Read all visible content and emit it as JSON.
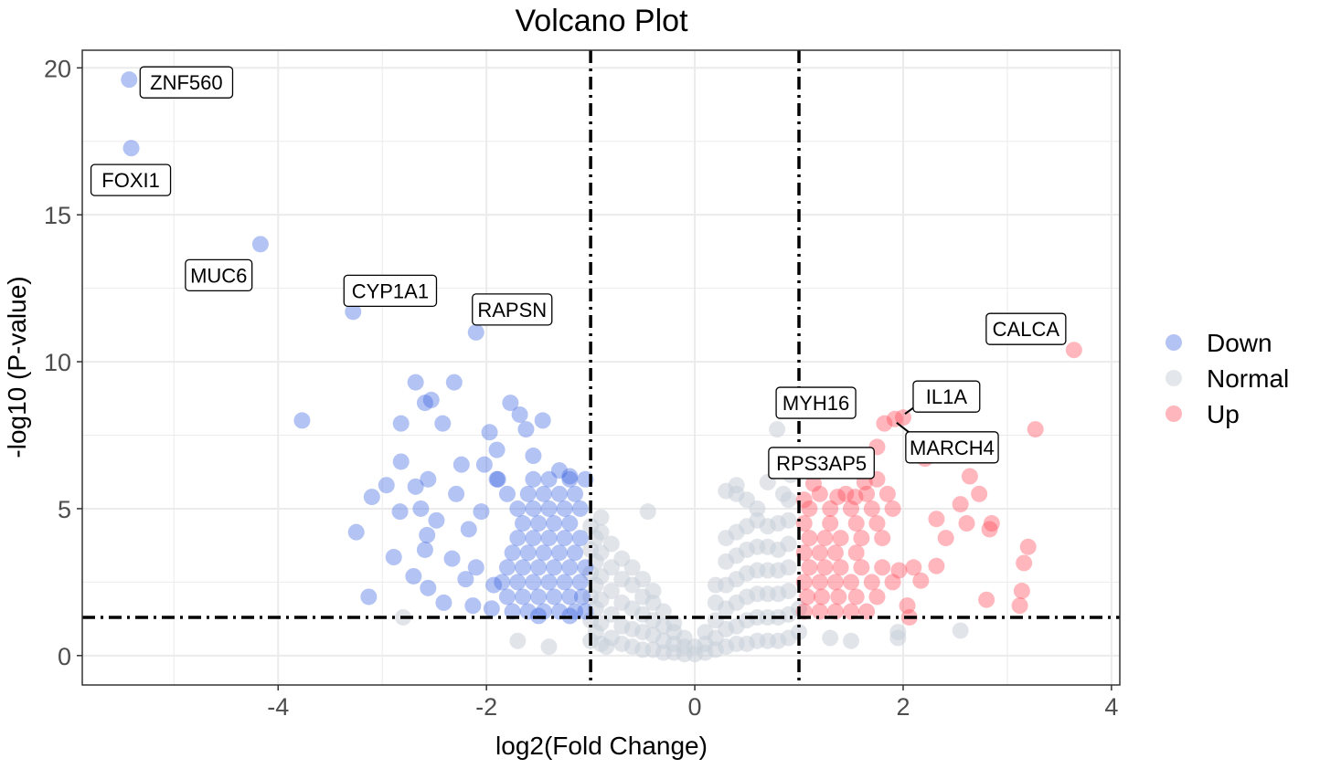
{
  "chart_data": {
    "type": "scatter",
    "title": "Volcano Plot",
    "xlabel": "log2(Fold Change)",
    "ylabel": "-log10 (P-value)",
    "xlim": [
      -5.88,
      4.08
    ],
    "ylim": [
      -1.0,
      20.6
    ],
    "xticks": [
      -4,
      -2,
      0,
      2,
      4
    ],
    "yticks": [
      0,
      5,
      10,
      15,
      20
    ],
    "grid": true,
    "thresholds": {
      "x": [
        -1,
        1
      ],
      "y": 1.3
    },
    "legend": {
      "position": "right",
      "entries": [
        "Down",
        "Normal",
        "Up"
      ]
    },
    "colors": {
      "Down": "#4169E1",
      "Normal": "#C8D0D9",
      "Up": "#FF4A5A"
    },
    "labels": [
      {
        "text": "ZNF560",
        "x": -5.43,
        "y": 19.6
      },
      {
        "text": "FOXI1",
        "x": -5.41,
        "y": 17.27
      },
      {
        "text": "MUC6",
        "x": -4.17,
        "y": 14.0
      },
      {
        "text": "CYP1A1",
        "x": -3.28,
        "y": 11.7
      },
      {
        "text": "RAPSN",
        "x": -2.1,
        "y": 11.0
      },
      {
        "text": "CALCA",
        "x": 3.64,
        "y": 10.4
      },
      {
        "text": "IL1A",
        "x": 2.0,
        "y": 8.1
      },
      {
        "text": "MARCH4",
        "x": 1.92,
        "y": 8.05
      },
      {
        "text": "MYH16",
        "x": 0.79,
        "y": 7.7
      },
      {
        "text": "RPS3AP5",
        "x": 0.92,
        "y": 6.15
      }
    ],
    "series": [
      {
        "name": "Normal",
        "points": [
          [
            -1.0,
            0.5
          ],
          [
            -1.0,
            1.2
          ],
          [
            -1.0,
            2.0
          ],
          [
            -1.0,
            2.8
          ],
          [
            -1.0,
            3.6
          ],
          [
            -1.0,
            4.4
          ],
          [
            -0.95,
            0.8
          ],
          [
            -0.95,
            1.6
          ],
          [
            -0.95,
            2.4
          ],
          [
            -0.95,
            3.2
          ],
          [
            -0.95,
            4.0
          ],
          [
            -0.9,
            0.4
          ],
          [
            -0.9,
            1.1
          ],
          [
            -0.9,
            1.9
          ],
          [
            -0.9,
            2.7
          ],
          [
            -0.9,
            3.5
          ],
          [
            -0.9,
            4.2
          ],
          [
            -0.9,
            4.7
          ],
          [
            -0.8,
            0.6
          ],
          [
            -0.8,
            1.4
          ],
          [
            -0.8,
            2.2
          ],
          [
            -0.8,
            3.0
          ],
          [
            -0.8,
            3.8
          ],
          [
            -0.7,
            0.4
          ],
          [
            -0.7,
            1.0
          ],
          [
            -0.7,
            1.8
          ],
          [
            -0.7,
            2.6
          ],
          [
            -0.7,
            3.3
          ],
          [
            -0.6,
            0.3
          ],
          [
            -0.6,
            0.9
          ],
          [
            -0.6,
            1.6
          ],
          [
            -0.6,
            2.4
          ],
          [
            -0.6,
            3.0
          ],
          [
            -0.5,
            0.2
          ],
          [
            -0.5,
            0.8
          ],
          [
            -0.5,
            1.4
          ],
          [
            -0.5,
            2.0
          ],
          [
            -0.5,
            2.6
          ],
          [
            -0.45,
            4.9
          ],
          [
            -0.4,
            0.2
          ],
          [
            -0.4,
            0.7
          ],
          [
            -0.4,
            1.2
          ],
          [
            -0.4,
            1.8
          ],
          [
            -0.4,
            2.2
          ],
          [
            -0.3,
            0.1
          ],
          [
            -0.3,
            0.5
          ],
          [
            -0.3,
            1.0
          ],
          [
            -0.3,
            1.5
          ],
          [
            -0.2,
            0.1
          ],
          [
            -0.2,
            0.4
          ],
          [
            -0.2,
            0.8
          ],
          [
            -0.2,
            1.1
          ],
          [
            -0.1,
            0.05
          ],
          [
            -0.1,
            0.3
          ],
          [
            -0.1,
            0.6
          ],
          [
            0,
            0.05
          ],
          [
            0,
            0.3
          ],
          [
            0.1,
            0.1
          ],
          [
            0.1,
            0.4
          ],
          [
            0.1,
            0.8
          ],
          [
            0.2,
            0.2
          ],
          [
            0.2,
            0.6
          ],
          [
            0.2,
            1.2
          ],
          [
            0.2,
            1.8
          ],
          [
            0.2,
            2.4
          ],
          [
            0.3,
            0.3
          ],
          [
            0.3,
            0.9
          ],
          [
            0.3,
            1.6
          ],
          [
            0.3,
            2.4
          ],
          [
            0.3,
            3.2
          ],
          [
            0.3,
            4.0
          ],
          [
            0.3,
            5.6
          ],
          [
            0.4,
            0.4
          ],
          [
            0.4,
            1.0
          ],
          [
            0.4,
            1.8
          ],
          [
            0.4,
            2.6
          ],
          [
            0.4,
            3.4
          ],
          [
            0.4,
            4.2
          ],
          [
            0.4,
            5.5
          ],
          [
            0.4,
            5.8
          ],
          [
            0.5,
            0.4
          ],
          [
            0.5,
            1.2
          ],
          [
            0.5,
            2.0
          ],
          [
            0.5,
            2.8
          ],
          [
            0.5,
            3.6
          ],
          [
            0.5,
            4.4
          ],
          [
            0.5,
            5.3
          ],
          [
            0.6,
            0.5
          ],
          [
            0.6,
            1.3
          ],
          [
            0.6,
            2.1
          ],
          [
            0.6,
            2.9
          ],
          [
            0.6,
            3.7
          ],
          [
            0.6,
            4.6
          ],
          [
            0.6,
            5.0
          ],
          [
            0.7,
            0.5
          ],
          [
            0.7,
            1.3
          ],
          [
            0.7,
            2.1
          ],
          [
            0.7,
            2.9
          ],
          [
            0.7,
            3.7
          ],
          [
            0.7,
            4.4
          ],
          [
            0.7,
            5.9
          ],
          [
            0.8,
            0.5
          ],
          [
            0.8,
            1.3
          ],
          [
            0.8,
            2.1
          ],
          [
            0.8,
            2.9
          ],
          [
            0.8,
            3.6
          ],
          [
            0.8,
            4.5
          ],
          [
            0.79,
            7.7
          ],
          [
            0.85,
            5.5
          ],
          [
            0.9,
            0.6
          ],
          [
            0.9,
            1.4
          ],
          [
            0.9,
            2.2
          ],
          [
            0.9,
            3.0
          ],
          [
            0.9,
            3.8
          ],
          [
            0.9,
            4.6
          ],
          [
            0.9,
            5.3
          ],
          [
            0.92,
            6.15
          ],
          [
            1.0,
            0.8
          ],
          [
            1.0,
            1.6
          ],
          [
            -0.85,
            0.3
          ],
          [
            -1.4,
            0.3
          ],
          [
            -1.7,
            0.5
          ],
          [
            -2.8,
            1.3
          ],
          [
            1.3,
            0.6
          ],
          [
            1.5,
            0.5
          ],
          [
            1.95,
            0.8
          ],
          [
            1.95,
            0.6
          ],
          [
            2.55,
            0.85
          ]
        ]
      },
      {
        "name": "Down",
        "points": [
          [
            -5.43,
            19.6
          ],
          [
            -5.41,
            17.27
          ],
          [
            -4.17,
            14.0
          ],
          [
            -3.28,
            11.7
          ],
          [
            -2.1,
            11.0
          ],
          [
            -3.77,
            8.0
          ],
          [
            -2.68,
            9.3
          ],
          [
            -2.31,
            9.3
          ],
          [
            -2.53,
            8.7
          ],
          [
            -2.59,
            8.6
          ],
          [
            -2.82,
            7.9
          ],
          [
            -2.42,
            7.9
          ],
          [
            -1.77,
            8.6
          ],
          [
            -1.68,
            8.2
          ],
          [
            -1.46,
            8.0
          ],
          [
            -1.62,
            7.7
          ],
          [
            -1.97,
            7.6
          ],
          [
            -2.82,
            6.6
          ],
          [
            -3.1,
            5.4
          ],
          [
            -2.96,
            5.8
          ],
          [
            -3.25,
            4.2
          ],
          [
            -3.13,
            2.0
          ],
          [
            -2.89,
            3.35
          ],
          [
            -2.83,
            4.9
          ],
          [
            -2.68,
            5.75
          ],
          [
            -2.56,
            6.0
          ],
          [
            -2.63,
            5.0
          ],
          [
            -2.57,
            4.1
          ],
          [
            -2.59,
            3.6
          ],
          [
            -2.48,
            4.6
          ],
          [
            -2.56,
            2.3
          ],
          [
            -2.41,
            1.8
          ],
          [
            -2.33,
            3.3
          ],
          [
            -2.24,
            6.5
          ],
          [
            -2.29,
            5.5
          ],
          [
            -2.17,
            4.3
          ],
          [
            -2.1,
            3.0
          ],
          [
            -2.05,
            4.9
          ],
          [
            -2.02,
            6.5
          ],
          [
            -1.9,
            7.0
          ],
          [
            -1.89,
            6.0
          ],
          [
            -2.13,
            1.7
          ],
          [
            -1.93,
            2.4
          ],
          [
            -2.7,
            2.7
          ],
          [
            -2.2,
            2.6
          ],
          [
            -1.95,
            1.6
          ],
          [
            -1.55,
            6.8
          ],
          [
            -1.3,
            6.3
          ],
          [
            -1.2,
            6.1
          ],
          [
            -1.75,
            1.5
          ],
          [
            -1.6,
            1.5
          ],
          [
            -1.45,
            1.5
          ],
          [
            -1.3,
            1.5
          ],
          [
            -1.15,
            1.5
          ],
          [
            -1.05,
            1.5
          ],
          [
            -1.8,
            2.0
          ],
          [
            -1.65,
            2.0
          ],
          [
            -1.5,
            2.0
          ],
          [
            -1.35,
            2.0
          ],
          [
            -1.2,
            2.0
          ],
          [
            -1.08,
            2.0
          ],
          [
            -1.85,
            2.5
          ],
          [
            -1.7,
            2.5
          ],
          [
            -1.55,
            2.5
          ],
          [
            -1.4,
            2.5
          ],
          [
            -1.25,
            2.5
          ],
          [
            -1.1,
            2.5
          ],
          [
            -1.8,
            3.0
          ],
          [
            -1.65,
            3.0
          ],
          [
            -1.5,
            3.0
          ],
          [
            -1.35,
            3.0
          ],
          [
            -1.2,
            3.0
          ],
          [
            -1.05,
            3.0
          ],
          [
            -1.75,
            3.5
          ],
          [
            -1.6,
            3.5
          ],
          [
            -1.45,
            3.5
          ],
          [
            -1.3,
            3.5
          ],
          [
            -1.15,
            3.5
          ],
          [
            -1.7,
            4.0
          ],
          [
            -1.55,
            4.0
          ],
          [
            -1.4,
            4.0
          ],
          [
            -1.25,
            4.0
          ],
          [
            -1.1,
            4.0
          ],
          [
            -1.65,
            4.5
          ],
          [
            -1.5,
            4.5
          ],
          [
            -1.35,
            4.5
          ],
          [
            -1.2,
            4.5
          ],
          [
            -1.7,
            5.0
          ],
          [
            -1.55,
            5.0
          ],
          [
            -1.4,
            5.0
          ],
          [
            -1.25,
            5.0
          ],
          [
            -1.1,
            5.0
          ],
          [
            -1.8,
            5.5
          ],
          [
            -1.6,
            5.5
          ],
          [
            -1.45,
            5.5
          ],
          [
            -1.3,
            5.5
          ],
          [
            -1.15,
            5.5
          ],
          [
            -1.9,
            6.0
          ],
          [
            -1.55,
            6.0
          ],
          [
            -1.4,
            6.0
          ],
          [
            -1.2,
            6.0
          ],
          [
            -1.05,
            6.0
          ],
          [
            -1.2,
            1.35
          ],
          [
            -1.5,
            1.35
          ]
        ]
      },
      {
        "name": "Up",
        "points": [
          [
            3.64,
            10.4
          ],
          [
            2.0,
            8.1
          ],
          [
            1.92,
            8.05
          ],
          [
            3.27,
            7.7
          ],
          [
            1.82,
            7.9
          ],
          [
            2.14,
            7.1
          ],
          [
            2.21,
            6.7
          ],
          [
            2.64,
            6.1
          ],
          [
            2.73,
            5.5
          ],
          [
            2.55,
            5.15
          ],
          [
            2.85,
            4.5
          ],
          [
            2.61,
            4.5
          ],
          [
            2.83,
            4.3
          ],
          [
            3.2,
            3.7
          ],
          [
            3.16,
            3.15
          ],
          [
            3.14,
            2.2
          ],
          [
            3.12,
            1.7
          ],
          [
            2.8,
            1.9
          ],
          [
            2.32,
            4.65
          ],
          [
            2.41,
            4.0
          ],
          [
            2.32,
            3.05
          ],
          [
            2.17,
            2.55
          ],
          [
            2.04,
            1.7
          ],
          [
            2.06,
            1.3
          ],
          [
            1.96,
            2.9
          ],
          [
            2.1,
            3.0
          ],
          [
            1.75,
            7.1
          ],
          [
            1.63,
            5.9
          ],
          [
            1.75,
            6.0
          ],
          [
            1.54,
            5.4
          ],
          [
            1.37,
            5.4
          ],
          [
            1.14,
            5.85
          ],
          [
            1.05,
            5.3
          ],
          [
            1.05,
            1.5
          ],
          [
            1.2,
            1.5
          ],
          [
            1.35,
            1.5
          ],
          [
            1.5,
            1.5
          ],
          [
            1.65,
            1.5
          ],
          [
            1.08,
            2.0
          ],
          [
            1.22,
            2.0
          ],
          [
            1.38,
            2.0
          ],
          [
            1.55,
            2.0
          ],
          [
            1.75,
            2.0
          ],
          [
            1.05,
            2.5
          ],
          [
            1.2,
            2.5
          ],
          [
            1.35,
            2.5
          ],
          [
            1.5,
            2.5
          ],
          [
            1.7,
            2.5
          ],
          [
            1.9,
            2.5
          ],
          [
            1.1,
            3.0
          ],
          [
            1.25,
            3.0
          ],
          [
            1.4,
            3.0
          ],
          [
            1.6,
            3.0
          ],
          [
            1.8,
            3.0
          ],
          [
            1.05,
            3.5
          ],
          [
            1.2,
            3.5
          ],
          [
            1.35,
            3.5
          ],
          [
            1.55,
            3.5
          ],
          [
            1.1,
            4.0
          ],
          [
            1.25,
            4.0
          ],
          [
            1.4,
            4.0
          ],
          [
            1.6,
            4.0
          ],
          [
            1.8,
            4.0
          ],
          [
            1.05,
            4.5
          ],
          [
            1.3,
            4.5
          ],
          [
            1.55,
            4.5
          ],
          [
            1.75,
            4.5
          ],
          [
            1.1,
            5.0
          ],
          [
            1.3,
            5.0
          ],
          [
            1.5,
            5.0
          ],
          [
            1.7,
            5.0
          ],
          [
            1.9,
            5.0
          ],
          [
            1.2,
            5.5
          ],
          [
            1.45,
            5.5
          ],
          [
            1.65,
            5.5
          ],
          [
            1.85,
            5.5
          ]
        ]
      }
    ]
  }
}
